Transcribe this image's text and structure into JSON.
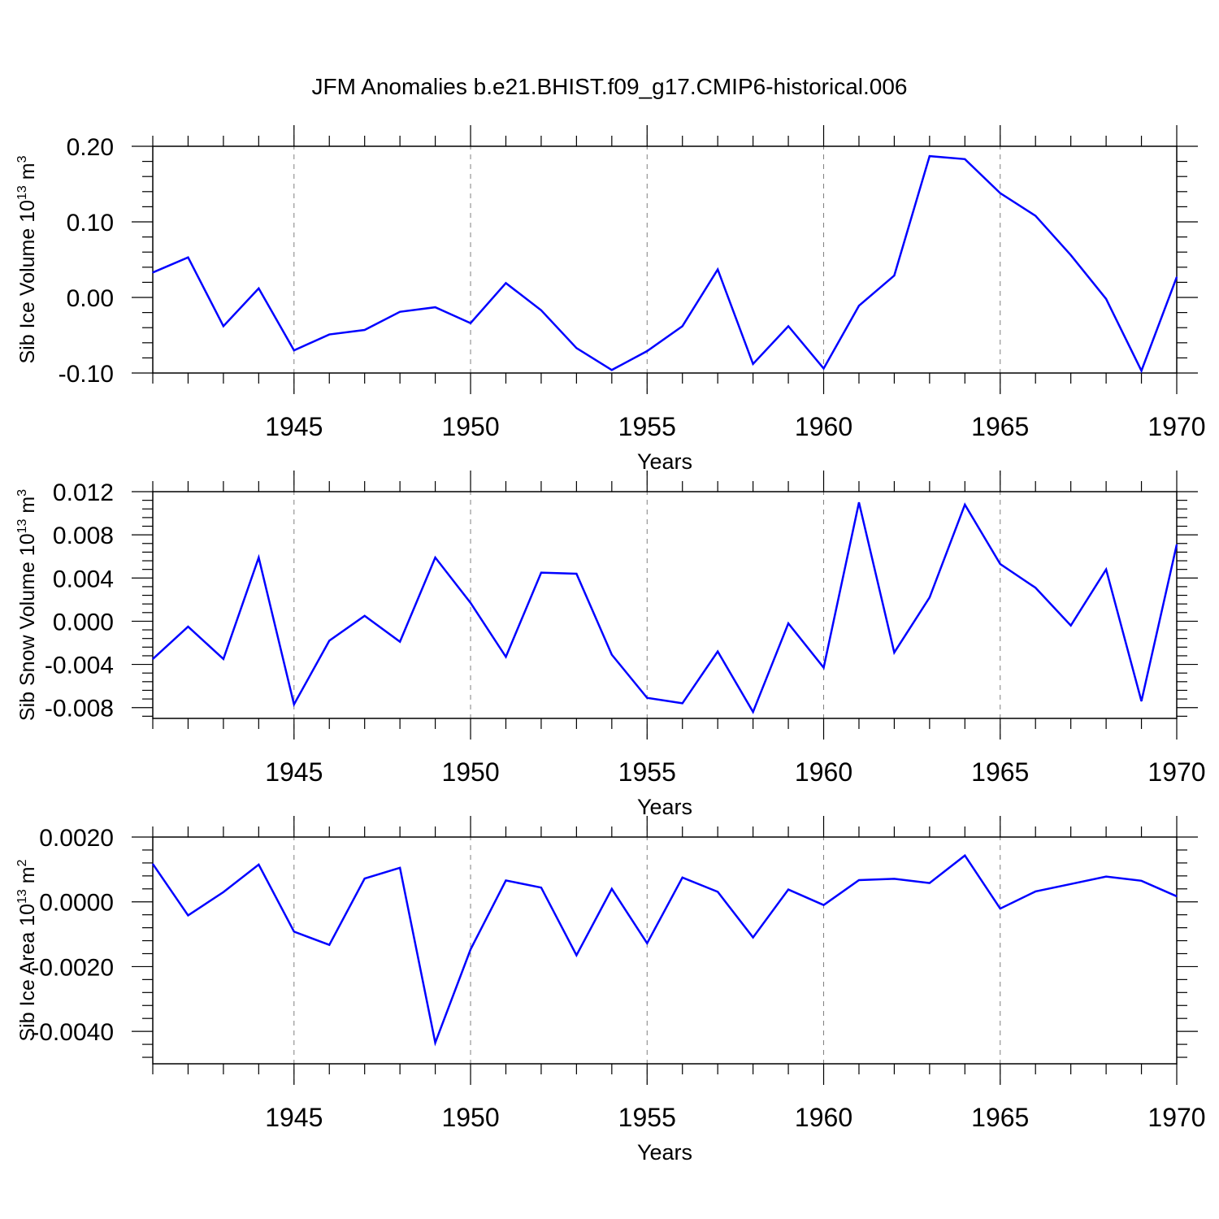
{
  "title": "JFM Anomalies b.e21.BHIST.f09_g17.CMIP6-historical.006",
  "colors": {
    "line": "#0000ff",
    "axis": "#000000",
    "grid": "#808080"
  },
  "chart_data": [
    {
      "type": "line",
      "xlabel": "Years",
      "ylabel": "Sib Ice Volume 10",
      "ylabel_sup": "13",
      "ylabel_unit": " m",
      "ylabel_unit_sup": "3",
      "xlim": [
        1941,
        1970
      ],
      "ylim": [
        -0.1,
        0.2
      ],
      "yticks": [
        -0.1,
        0.0,
        0.1,
        0.2
      ],
      "ytick_labels": [
        "-0.10",
        "0.00",
        "0.10",
        "0.20"
      ],
      "xticks": [
        1945,
        1950,
        1955,
        1960,
        1965,
        1970
      ],
      "xtick_labels": [
        "1945",
        "1950",
        "1955",
        "1960",
        "1965",
        "1970"
      ],
      "grid": "dashed vertical at major x ticks",
      "x": [
        1941,
        1942,
        1943,
        1944,
        1945,
        1946,
        1947,
        1948,
        1949,
        1950,
        1951,
        1952,
        1953,
        1954,
        1955,
        1956,
        1957,
        1958,
        1959,
        1960,
        1961,
        1962,
        1963,
        1964,
        1965,
        1966,
        1967,
        1968,
        1969,
        1970
      ],
      "y": [
        0.033,
        0.053,
        -0.038,
        0.012,
        -0.07,
        -0.049,
        -0.043,
        -0.019,
        -0.013,
        -0.034,
        0.019,
        -0.017,
        -0.067,
        -0.096,
        -0.071,
        -0.038,
        0.037,
        -0.088,
        -0.038,
        -0.094,
        -0.011,
        0.029,
        0.187,
        0.183,
        0.138,
        0.108,
        0.056,
        -0.002,
        -0.097,
        0.027
      ]
    },
    {
      "type": "line",
      "xlabel": "Years",
      "ylabel": "Sib Snow Volume 10",
      "ylabel_sup": "13",
      "ylabel_unit": " m",
      "ylabel_unit_sup": "3",
      "xlim": [
        1941,
        1970
      ],
      "ylim": [
        -0.009,
        0.012
      ],
      "yticks": [
        -0.008,
        -0.004,
        0.0,
        0.004,
        0.008,
        0.012
      ],
      "ytick_labels": [
        "-0.008",
        "-0.004",
        "0.000",
        "0.004",
        "0.008",
        "0.012"
      ],
      "xticks": [
        1945,
        1950,
        1955,
        1960,
        1965,
        1970
      ],
      "xtick_labels": [
        "1945",
        "1950",
        "1955",
        "1960",
        "1965",
        "1970"
      ],
      "grid": "dashed vertical at major x ticks",
      "x": [
        1941,
        1942,
        1943,
        1944,
        1945,
        1946,
        1947,
        1948,
        1949,
        1950,
        1951,
        1952,
        1953,
        1954,
        1955,
        1956,
        1957,
        1958,
        1959,
        1960,
        1961,
        1962,
        1963,
        1964,
        1965,
        1966,
        1967,
        1968,
        1969,
        1970
      ],
      "y": [
        -0.0035,
        -0.0005,
        -0.0035,
        0.0059,
        -0.0077,
        -0.0018,
        0.0005,
        -0.0019,
        0.0059,
        0.0017,
        -0.0033,
        0.0045,
        0.0044,
        -0.0031,
        -0.0071,
        -0.0076,
        -0.0028,
        -0.0084,
        -0.0002,
        -0.0043,
        0.011,
        -0.0029,
        0.0022,
        0.0108,
        0.0053,
        0.0031,
        -0.0004,
        0.0048,
        -0.0074,
        0.0071
      ]
    },
    {
      "type": "line",
      "xlabel": "Years",
      "ylabel": "Sib Ice Area 10",
      "ylabel_sup": "13",
      "ylabel_unit": " m",
      "ylabel_unit_sup": "2",
      "xlim": [
        1941,
        1970
      ],
      "ylim": [
        -0.005,
        0.002
      ],
      "yticks": [
        -0.004,
        -0.002,
        0.0,
        0.002
      ],
      "ytick_labels": [
        "-0.0040",
        "-0.0020",
        "0.0000",
        "0.0020"
      ],
      "xticks": [
        1945,
        1950,
        1955,
        1960,
        1965,
        1970
      ],
      "xtick_labels": [
        "1945",
        "1950",
        "1955",
        "1960",
        "1965",
        "1970"
      ],
      "grid": "dashed vertical at major x ticks",
      "x": [
        1941,
        1942,
        1943,
        1944,
        1945,
        1946,
        1947,
        1948,
        1949,
        1950,
        1951,
        1952,
        1953,
        1954,
        1955,
        1956,
        1957,
        1958,
        1959,
        1960,
        1961,
        1962,
        1963,
        1964,
        1965,
        1966,
        1967,
        1968,
        1969,
        1970
      ],
      "y": [
        0.00117,
        -0.00042,
        0.0003,
        0.00115,
        -0.00092,
        -0.00133,
        0.00072,
        0.00105,
        -0.00435,
        -0.00147,
        0.00066,
        0.00044,
        -0.00165,
        0.0004,
        -0.00128,
        0.00075,
        0.00031,
        -0.0011,
        0.00038,
        -0.0001,
        0.00067,
        0.00071,
        0.00058,
        0.00143,
        -0.00021,
        0.00032,
        0.00055,
        0.00078,
        0.00065,
        0.00017
      ]
    }
  ]
}
